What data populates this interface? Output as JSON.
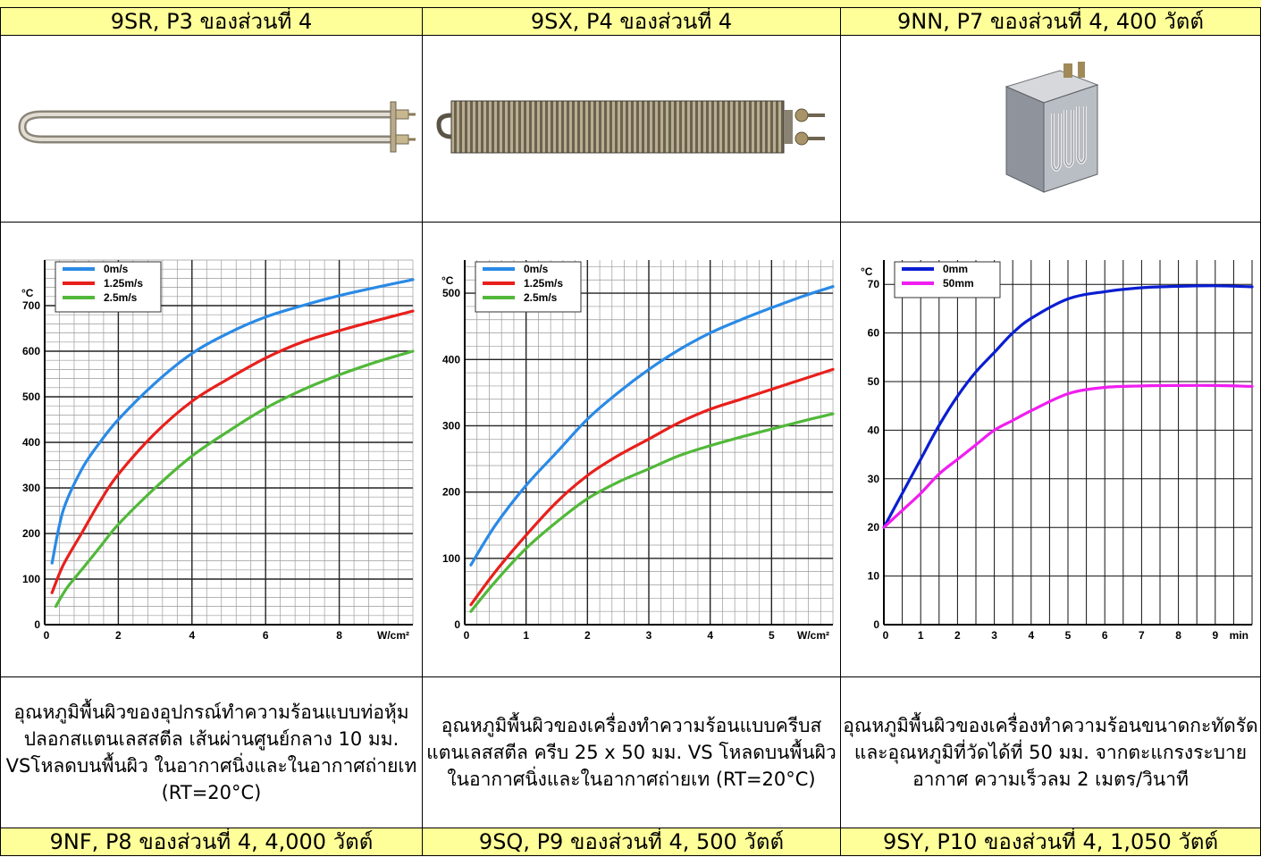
{
  "header_cells": [
    "9SR, P3 ของส่วนที่ 4",
    "9SX, P4 ของส่วนที่ 4",
    "9NN, P7 ของส่วนที่ 4, 400 วัตต์"
  ],
  "product_images": [
    "u-tube-heater-icon",
    "finned-heater-icon",
    "compact-heater-box-icon"
  ],
  "descriptions": [
    "อุณหภูมิพื้นผิวของอุปกรณ์ทำความร้อนแบบท่อหุ้มปลอกสแตนเลสสตีล เส้นผ่านศูนย์กลาง 10 มม. VSโหลดบนพื้นผิว ในอากาศนิ่งและในอากาศถ่ายเท (RT=20°C)",
    "อุณหภูมิพื้นผิวของเครื่องทำความร้อนแบบครีบสแตนเลสสตีล ครีบ 25 x 50 มม. VS โหลดบนพื้นผิว ในอากาศนิ่งและในอากาศถ่ายเท (RT=20°C)",
    "อุณหภูมิพื้นผิวของเครื่องทำความร้อนขนาดกะทัดรัดและอุณหภูมิที่วัดได้ที่ 50 มม. จากตะแกรงระบายอากาศ ความเร็วลม 2 เมตร/วินาที"
  ],
  "footer_cells": [
    "9NF, P8 ของส่วนที่ 4, 4,000 วัตต์",
    "9SQ, P9 ของส่วนที่ 4, 500 วัตต์",
    "9SY, P10 ของส่วนที่ 4, 1,050 วัตต์"
  ],
  "chart_data": [
    {
      "type": "line",
      "ylabel": "°C",
      "xlabel": "W/cm²",
      "xlim": [
        0,
        10
      ],
      "ylim": [
        0,
        800
      ],
      "xticks": [
        0,
        2,
        4,
        6,
        8
      ],
      "xtick_labels": [
        "0",
        "2",
        "4",
        "6",
        "8"
      ],
      "yticks": [
        0,
        100,
        200,
        300,
        400,
        500,
        600,
        700
      ],
      "grid": true,
      "legend": "top-left",
      "series": [
        {
          "name": "0m/s",
          "color": "#2a8ae6",
          "x": [
            0.2,
            0.5,
            1,
            1.5,
            2,
            3,
            4,
            5,
            6,
            7,
            8,
            9,
            10
          ],
          "y": [
            135,
            250,
            340,
            400,
            450,
            530,
            595,
            640,
            675,
            700,
            722,
            740,
            757
          ]
        },
        {
          "name": "1.25m/s",
          "color": "#e8201c",
          "x": [
            0.2,
            0.5,
            1,
            1.5,
            2,
            3,
            4,
            5,
            6,
            7,
            8,
            9,
            10
          ],
          "y": [
            70,
            130,
            200,
            270,
            330,
            420,
            490,
            540,
            585,
            620,
            645,
            667,
            688
          ]
        },
        {
          "name": "2.5m/s",
          "color": "#52b83a",
          "x": [
            0.3,
            0.6,
            1,
            1.5,
            2,
            3,
            4,
            5,
            6,
            7,
            8,
            9,
            10
          ],
          "y": [
            40,
            80,
            120,
            170,
            220,
            300,
            370,
            425,
            475,
            515,
            548,
            576,
            600
          ]
        }
      ]
    },
    {
      "type": "line",
      "ylabel": "°C",
      "xlabel": "W/cm²",
      "xlim": [
        0,
        6
      ],
      "ylim": [
        0,
        550
      ],
      "xticks": [
        0,
        1,
        2,
        3,
        4,
        5
      ],
      "xtick_labels": [
        "0",
        "1",
        "2",
        "3",
        "4",
        "5"
      ],
      "yticks": [
        0,
        100,
        200,
        300,
        400,
        500
      ],
      "grid": true,
      "legend": "top-left",
      "series": [
        {
          "name": "0m/s",
          "color": "#2a8ae6",
          "x": [
            0.1,
            0.5,
            1,
            1.5,
            2,
            2.5,
            3,
            3.5,
            4,
            4.5,
            5,
            5.5,
            6
          ],
          "y": [
            90,
            150,
            210,
            260,
            310,
            350,
            385,
            415,
            440,
            460,
            478,
            495,
            510
          ]
        },
        {
          "name": "1.25m/s",
          "color": "#e8201c",
          "x": [
            0.1,
            0.5,
            1,
            1.5,
            2,
            2.5,
            3,
            3.5,
            4,
            4.5,
            5,
            5.5,
            6
          ],
          "y": [
            30,
            80,
            135,
            185,
            225,
            255,
            280,
            305,
            325,
            340,
            355,
            370,
            385
          ]
        },
        {
          "name": "2.5m/s",
          "color": "#52b83a",
          "x": [
            0.1,
            0.5,
            1,
            1.5,
            2,
            2.5,
            3,
            3.5,
            4,
            4.5,
            5,
            5.5,
            6
          ],
          "y": [
            20,
            65,
            115,
            155,
            190,
            215,
            235,
            255,
            270,
            283,
            295,
            307,
            318
          ]
        }
      ]
    },
    {
      "type": "line",
      "ylabel": "°C",
      "xlabel": "min",
      "xlim": [
        0,
        10
      ],
      "ylim": [
        0,
        75
      ],
      "xticks": [
        0,
        1,
        2,
        3,
        4,
        5,
        6,
        7,
        8,
        9
      ],
      "xtick_labels": [
        "0",
        "1",
        "2",
        "3",
        "4",
        "5",
        "6",
        "7",
        "8",
        "9"
      ],
      "yticks": [
        0,
        10,
        20,
        30,
        40,
        50,
        60,
        70
      ],
      "grid": true,
      "legend": "top-left",
      "series": [
        {
          "name": "0mm",
          "color": "#0a1ed2",
          "x": [
            0,
            0.5,
            1,
            1.5,
            2,
            2.5,
            3,
            3.5,
            4,
            5,
            6,
            7,
            8,
            9,
            10
          ],
          "y": [
            20,
            27,
            34,
            41,
            47,
            52,
            56,
            60,
            63,
            67,
            68.5,
            69.3,
            69.6,
            69.7,
            69.5
          ]
        },
        {
          "name": "50mm",
          "color": "#f01ef0",
          "x": [
            0,
            0.5,
            1,
            1.5,
            2,
            2.5,
            3,
            3.5,
            4,
            5,
            6,
            7,
            8,
            9,
            10
          ],
          "y": [
            20,
            23.5,
            27,
            31,
            34,
            37,
            40,
            42,
            44,
            47.5,
            48.8,
            49.1,
            49.2,
            49.2,
            49.0
          ]
        }
      ]
    }
  ]
}
